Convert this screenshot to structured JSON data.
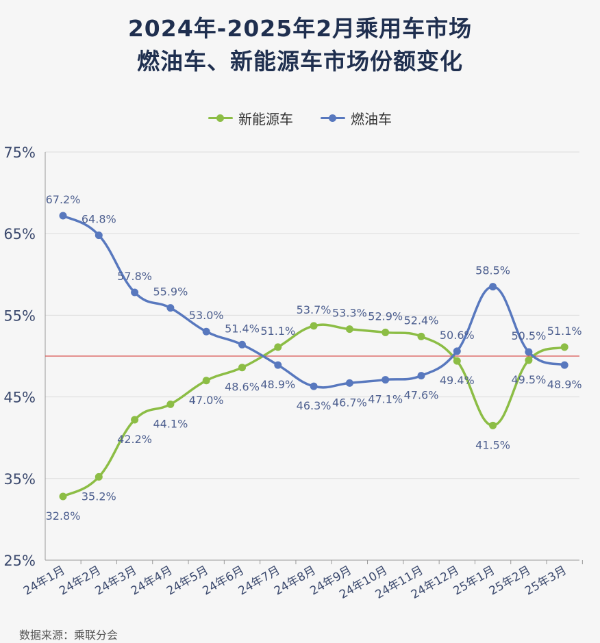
{
  "title": {
    "line1": "2024年-2025年2月乘用车市场",
    "line2": "燃油车、新能源车市场份额变化"
  },
  "source": "数据来源：乘联分会",
  "colors": {
    "nev": "#8cbd45",
    "fuel": "#5878be",
    "refline": "#d9534f",
    "grid": "#dcdcdc",
    "label": "#4d5f8f"
  },
  "chart_data": {
    "type": "line",
    "categories": [
      "24年1月",
      "24年2月",
      "24年3月",
      "24年4月",
      "24年5月",
      "24年6月",
      "24年7月",
      "24年8月",
      "24年9月",
      "24年10月",
      "24年11月",
      "24年12月",
      "25年1月",
      "25年2月",
      "25年3月"
    ],
    "series": [
      {
        "name": "新能源车",
        "values": [
          32.8,
          35.2,
          42.2,
          44.1,
          47.0,
          48.6,
          51.1,
          53.7,
          53.3,
          52.9,
          52.4,
          49.4,
          41.5,
          49.5,
          51.1
        ],
        "labels": [
          "32.8%",
          "35.2%",
          "42.2%",
          "44.1%",
          "47.0%",
          "48.6%",
          "51.1%",
          "53.7%",
          "53.3%",
          "52.9%",
          "52.4%",
          "49.4%",
          "41.5%",
          "49.5%",
          "51.1%"
        ]
      },
      {
        "name": "燃油车",
        "values": [
          67.2,
          64.8,
          57.8,
          55.9,
          53.0,
          51.4,
          48.9,
          46.3,
          46.7,
          47.1,
          47.6,
          50.6,
          58.5,
          50.5,
          48.9
        ],
        "labels": [
          "67.2%",
          "64.8%",
          "57.8%",
          "55.9%",
          "53.0%",
          "51.4%",
          "48.9%",
          "46.3%",
          "46.7%",
          "47.1%",
          "47.6%",
          "50.6%",
          "58.5%",
          "50.5%",
          "48.9%"
        ]
      }
    ],
    "yticks": [
      "75%",
      "65%",
      "55%",
      "45%",
      "35%",
      "25%"
    ],
    "ytick_values": [
      75,
      65,
      55,
      45,
      35,
      25
    ],
    "ylim": [
      25,
      75
    ],
    "reference_line": 50,
    "grid": true,
    "legend": "top-center",
    "smooth": true
  }
}
